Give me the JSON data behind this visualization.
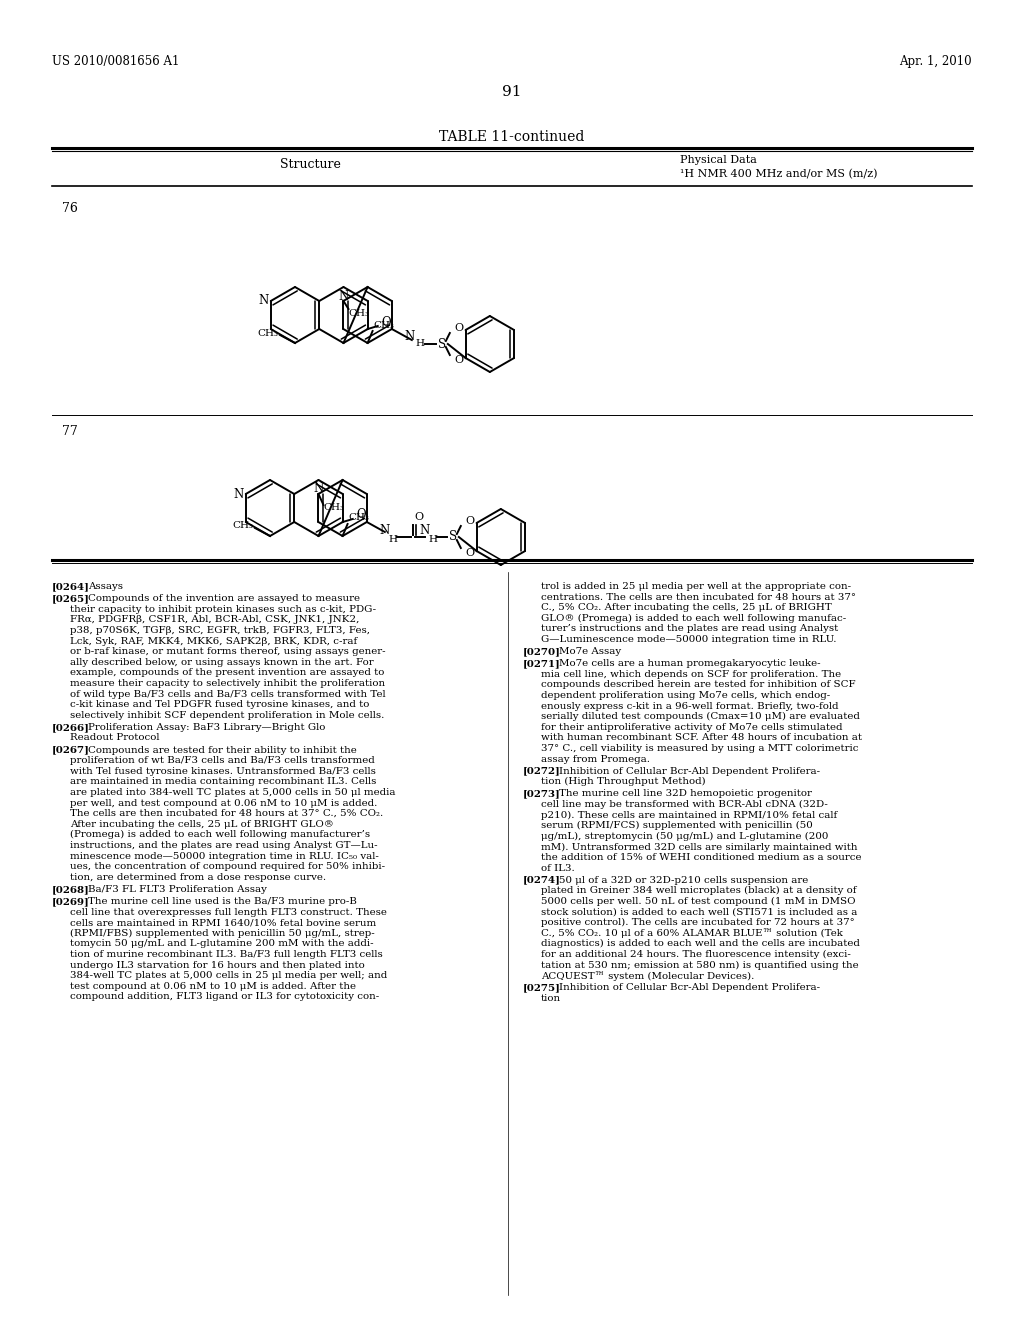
{
  "background_color": "#ffffff",
  "header_left": "US 2010/0081656 A1",
  "header_right": "Apr. 1, 2010",
  "page_number": "91",
  "table_title": "TABLE 11-continued",
  "col1_header": "Structure",
  "col2_header_line1": "Physical Data",
  "col2_header_line2": "¹H NMR 400 MHz and/or MS (m/z)",
  "row_numbers": [
    "76",
    "77"
  ],
  "body_text_left": [
    "[0264] Assays",
    "[0265] Compounds of the invention are assayed to measure\ntheir capacity to inhibit protein kinases such as c-kit, PDG-\nFRα, PDGFRβ, CSF1R, Abl, BCR-Abl, CSK, JNK1, JNK2,\np38, p70S6K, TGFβ, SRC, EGFR, trkB, FGFR3, FLT3, Fes,\nLck, Syk, RAF, MKK4, MKK6, SAPK2β, BRK, KDR, c-raf\nor b-raf kinase, or mutant forms thereof, using assays gener-\nally described below, or using assays known in the art. For\nexample, compounds of the present invention are assayed to\nmeasure their capacity to selectively inhibit the proliferation\nof wild type Ba/F3 cells and Ba/F3 cells transformed with Tel\nc-kit kinase and Tel PDGFR fused tyrosine kinases, and to\nselectively inhibit SCF dependent proliferation in Mole cells.",
    "[0266] Proliferation Assay: BaF3 Library—Bright Glo\nReadout Protocol",
    "[0267] Compounds are tested for their ability to inhibit the\nproliferation of wt Ba/F3 cells and Ba/F3 cells transformed\nwith Tel fused tyrosine kinases. Untransformed Ba/F3 cells\nare maintained in media containing recombinant IL3. Cells\nare plated into 384-well TC plates at 5,000 cells in 50 μl media\nper well, and test compound at 0.06 nM to 10 μM is added.\nThe cells are then incubated for 48 hours at 37° C., 5% CO₂.\nAfter incubating the cells, 25 μL of BRIGHT GLO®\n(Promega) is added to each well following manufacturer’s\ninstructions, and the plates are read using Analyst GT—Lu-\nminescence mode—50000 integration time in RLU. IC₅₀ val-\nues, the concentration of compound required for 50% inhibi-\ntion, are determined from a dose response curve.",
    "[0268] Ba/F3 FL FLT3 Proliferation Assay",
    "[0269] The murine cell line used is the Ba/F3 murine pro-B\ncell line that overexpresses full length FLT3 construct. These\ncells are maintained in RPMI 1640/10% fetal bovine serum\n(RPMI/FBS) supplemented with penicillin 50 μg/mL, strep-\ntomycin 50 μg/mL and L-glutamine 200 mM with the addi-\ntion of murine recombinant IL3. Ba/F3 full length FLT3 cells\nundergo IL3 starvation for 16 hours and then plated into\n384-well TC plates at 5,000 cells in 25 μl media per well; and\ntest compound at 0.06 nM to 10 μM is added. After the\ncompound addition, FLT3 ligand or IL3 for cytotoxicity con-"
  ],
  "body_text_right": [
    "trol is added in 25 μl media per well at the appropriate con-\ncentrations. The cells are then incubated for 48 hours at 37°\nC., 5% CO₂. After incubating the cells, 25 μL of BRIGHT\nGLO® (Promega) is added to each well following manufac-\nturer’s instructions and the plates are read using Analyst\nG—Luminescence mode—50000 integration time in RLU.",
    "[0270] Mo7e Assay",
    "[0271] Mo7e cells are a human promegakaryocytic leuke-\nmia cell line, which depends on SCF for proliferation. The\ncompounds described herein are tested for inhibition of SCF\ndependent proliferation using Mo7e cells, which endog-\nenously express c-kit in a 96-well format. Briefly, two-fold\nserially diluted test compounds (Cmax=10 μM) are evaluated\nfor their antiproliferative activity of Mo7e cells stimulated\nwith human recombinant SCF. After 48 hours of incubation at\n37° C., cell viability is measured by using a MTT colorimetric\nassay from Promega.",
    "[0272] Inhibition of Cellular Bcr-Abl Dependent Prolifera-\ntion (High Throughput Method)",
    "[0273] The murine cell line 32D hemopoietic progenitor\ncell line may be transformed with BCR-Abl cDNA (32D-\np210). These cells are maintained in RPMI/10% fetal calf\nserum (RPMI/FCS) supplemented with penicillin (50\nμg/mL), streptomycin (50 μg/mL) and L-glutamine (200\nmM). Untransformed 32D cells are similarly maintained with\nthe addition of 15% of WEHI conditioned medium as a source\nof IL3.",
    "[0274]  50 μl of a 32D or 32D-p210 cells suspension are\nplated in Greiner 384 well microplates (black) at a density of\n5000 cells per well. 50 nL of test compound (1 mM in DMSO\nstock solution) is added to each well (STI571 is included as a\npositive control). The cells are incubated for 72 hours at 37°\nC., 5% CO₂. 10 μl of a 60% ALAMAR BLUE™ solution (Tek\ndiagnostics) is added to each well and the cells are incubated\nfor an additional 24 hours. The fluorescence intensity (exci-\ntation at 530 nm; emission at 580 nm) is quantified using the\nACQUEST™ system (Molecular Devices).",
    "[0275]  Inhibition of Cellular Bcr-Abl Dependent Prolifera-\ntion"
  ]
}
